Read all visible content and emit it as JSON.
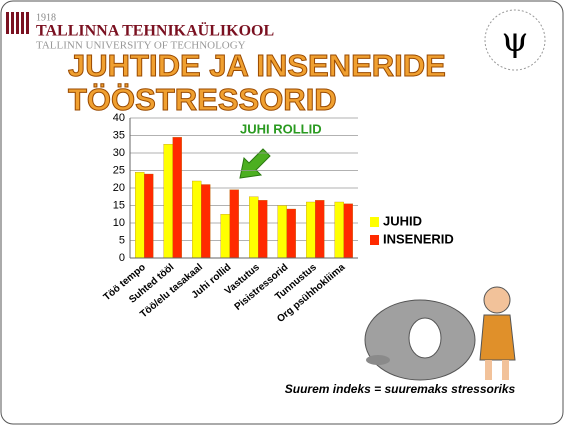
{
  "header": {
    "year": "1918",
    "name": "TALLINNA TEHNIKAÜLIKOOL",
    "name_en": "TALLINN UNIVERSITY OF TECHNOLOGY"
  },
  "logo": {
    "symbol": "ψ"
  },
  "footnote": "Suurem indeks = suuremaks stressoriks",
  "chart_data": {
    "type": "bar",
    "title": [
      "JUHTIDE JA INSENERIDE",
      "TÖÖSTRESSORID"
    ],
    "annotation": "JUHI ROLLID",
    "categories": [
      "Töö tempo",
      "Suhted tööl",
      "Töö/elu tasakaal",
      "Juhi rollid",
      "Vastutus",
      "Pisistressorid",
      "Tunnustus",
      "Org psühhokliima"
    ],
    "series": [
      {
        "name": "JUHID",
        "color": "#ffff00",
        "values": [
          24.5,
          32.5,
          22,
          12.5,
          17.5,
          15,
          16,
          16
        ]
      },
      {
        "name": "INSENERID",
        "color": "#ff2a00",
        "values": [
          24,
          34.5,
          21,
          19.5,
          16.5,
          14,
          16.5,
          15.5
        ]
      }
    ],
    "ylim": [
      0,
      40
    ],
    "yticks": [
      0,
      5,
      10,
      15,
      20,
      25,
      30,
      35,
      40
    ],
    "grid": true,
    "legend": "right"
  }
}
